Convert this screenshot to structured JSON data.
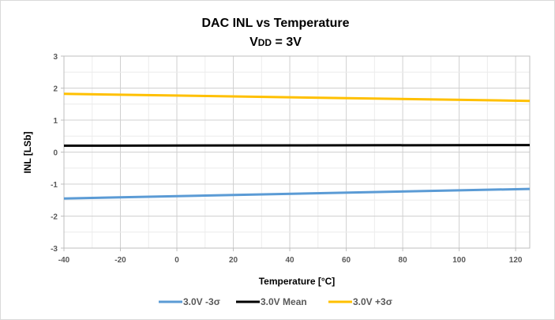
{
  "chart_data": {
    "type": "line",
    "title": "DAC INL vs Temperature",
    "subtitle": "VDD = 3V",
    "xlabel": "Temperature [°C]",
    "ylabel": "INL [LSb]",
    "xlim": [
      -40,
      125
    ],
    "ylim": [
      -3,
      3
    ],
    "xticks": [
      "-40",
      "-20",
      "0",
      "20",
      "40",
      "60",
      "80",
      "100",
      "120"
    ],
    "yticks": [
      "3",
      "2",
      "1",
      "0",
      "-1",
      "-2",
      "-3"
    ],
    "grid": true,
    "legend": "bottom",
    "x": [
      -40,
      125
    ],
    "series": [
      {
        "name": "3.0V -3σ",
        "color": "#5b9bd5",
        "values": [
          -1.45,
          -1.15
        ]
      },
      {
        "name": "3.0V Mean",
        "color": "#000000",
        "values": [
          0.2,
          0.22
        ]
      },
      {
        "name": "3.0V +3σ",
        "color": "#ffc000",
        "values": [
          1.82,
          1.6
        ]
      }
    ]
  }
}
